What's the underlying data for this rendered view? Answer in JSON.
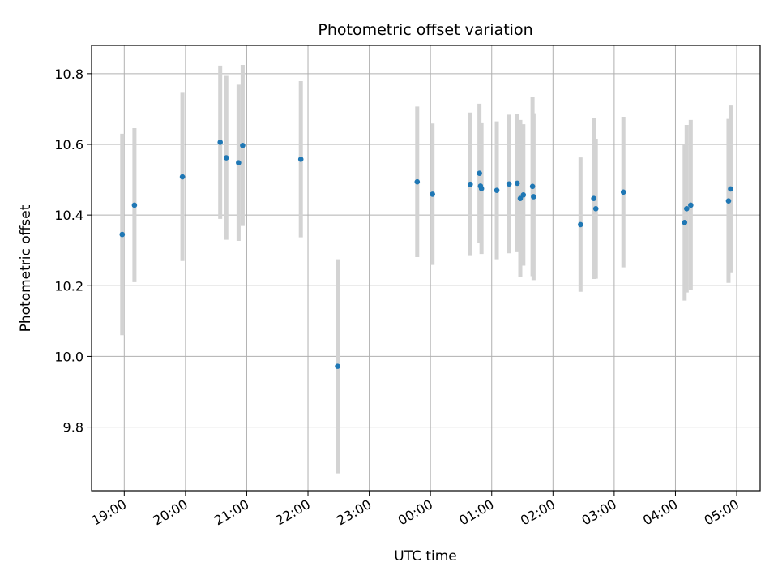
{
  "chart_data": {
    "type": "scatter",
    "title": "Photometric offset variation",
    "xlabel": "UTC time",
    "ylabel": "Photometric offset",
    "x_unit": "UTC time (HH:MM), night spanning midnight",
    "xlim": [
      "18:28",
      "05:23"
    ],
    "ylim": [
      9.62,
      10.88
    ],
    "x_ticks": [
      "19:00",
      "20:00",
      "21:00",
      "22:00",
      "23:00",
      "00:00",
      "01:00",
      "02:00",
      "03:00",
      "04:00",
      "05:00"
    ],
    "y_ticks": [
      "9.8",
      "10.0",
      "10.2",
      "10.4",
      "10.6",
      "10.8"
    ],
    "grid": true,
    "colors": {
      "point": "#1f77b4",
      "errorbar": "#d3d3d3",
      "grid": "#b0b0b0",
      "axes": "#000000"
    },
    "points": [
      {
        "x": "18:58",
        "y": 10.345,
        "err": 0.285
      },
      {
        "x": "19:10",
        "y": 10.428,
        "err": 0.218
      },
      {
        "x": "19:57",
        "y": 10.508,
        "err": 0.238
      },
      {
        "x": "20:34",
        "y": 10.606,
        "err": 0.217
      },
      {
        "x": "20:40",
        "y": 10.562,
        "err": 0.232
      },
      {
        "x": "20:52",
        "y": 10.548,
        "err": 0.221
      },
      {
        "x": "20:56",
        "y": 10.597,
        "err": 0.228
      },
      {
        "x": "21:53",
        "y": 10.558,
        "err": 0.221
      },
      {
        "x": "22:29",
        "y": 9.972,
        "err": 0.303
      },
      {
        "x": "23:47",
        "y": 10.494,
        "err": 0.213
      },
      {
        "x": "00:02",
        "y": 10.459,
        "err": 0.2
      },
      {
        "x": "00:39",
        "y": 10.487,
        "err": 0.203
      },
      {
        "x": "00:48",
        "y": 10.518,
        "err": 0.197
      },
      {
        "x": "00:49",
        "y": 10.482,
        "err": 0.16
      },
      {
        "x": "00:50",
        "y": 10.475,
        "err": 0.185
      },
      {
        "x": "01:05",
        "y": 10.47,
        "err": 0.195
      },
      {
        "x": "01:17",
        "y": 10.488,
        "err": 0.196
      },
      {
        "x": "01:25",
        "y": 10.49,
        "err": 0.195
      },
      {
        "x": "01:28",
        "y": 10.447,
        "err": 0.222
      },
      {
        "x": "01:31",
        "y": 10.457,
        "err": 0.2
      },
      {
        "x": "01:40",
        "y": 10.481,
        "err": 0.254
      },
      {
        "x": "01:41",
        "y": 10.452,
        "err": 0.236
      },
      {
        "x": "02:27",
        "y": 10.373,
        "err": 0.19
      },
      {
        "x": "02:40",
        "y": 10.447,
        "err": 0.228
      },
      {
        "x": "02:42",
        "y": 10.418,
        "err": 0.198
      },
      {
        "x": "03:09",
        "y": 10.465,
        "err": 0.213
      },
      {
        "x": "04:09",
        "y": 10.379,
        "err": 0.221
      },
      {
        "x": "04:11",
        "y": 10.418,
        "err": 0.237
      },
      {
        "x": "04:15",
        "y": 10.428,
        "err": 0.241
      },
      {
        "x": "04:52",
        "y": 10.44,
        "err": 0.232
      },
      {
        "x": "04:54",
        "y": 10.474,
        "err": 0.236
      }
    ]
  }
}
